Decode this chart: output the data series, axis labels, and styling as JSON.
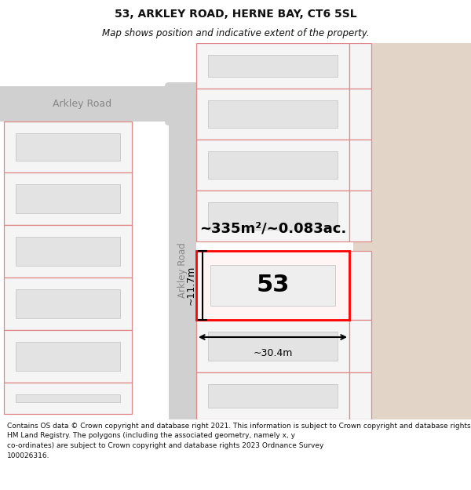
{
  "title_line1": "53, ARKLEY ROAD, HERNE BAY, CT6 5SL",
  "title_line2": "Map shows position and indicative extent of the property.",
  "footer_text": "Contains OS data © Crown copyright and database right 2021. This information is subject to Crown copyright and database rights 2023 and is reproduced with the permission of\nHM Land Registry. The polygons (including the associated geometry, namely x, y\nco-ordinates) are subject to Crown copyright and database rights 2023 Ordnance Survey\n100026316.",
  "area_label": "~335m²/~0.083ac.",
  "number_label": "53",
  "width_label": "~30.4m",
  "height_label": "~11.7m",
  "road_label": "Arkley Road",
  "map_bg": "#ffffff",
  "right_bg": "#e2d5c8",
  "road_color": "#d0d0d0",
  "parcel_bg": "#f5f5f5",
  "inner_face": "#e3e3e3",
  "inner_edge": "#c8c8c8",
  "pink_line": "#e08888",
  "highlight_face": "#fff5f5",
  "highlight_edge": "#ff0000",
  "dim_color": "#111111",
  "road_text_color": "#888888",
  "title_color": "#111111",
  "footer_color": "#111111"
}
